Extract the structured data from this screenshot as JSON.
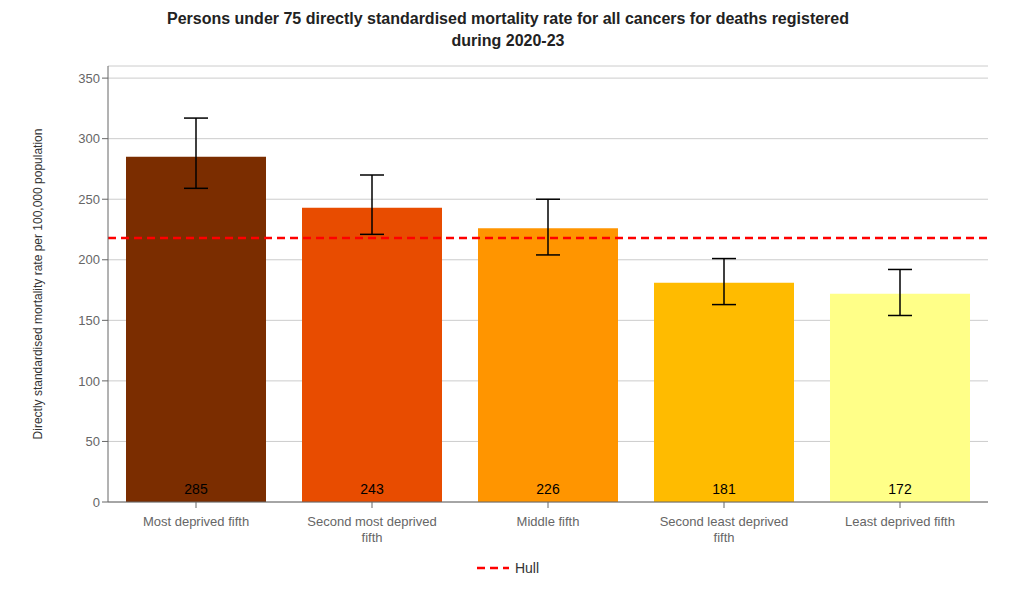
{
  "chart_data": {
    "type": "bar",
    "title": "Persons under 75 directly standardised mortality rate for all cancers for deaths registered\nduring 2020-23",
    "ylabel": "Directly standardised mortality rate per 100,000 population",
    "categories": [
      "Most deprived fifth",
      "Second most deprived\nfifth",
      "Middle fifth",
      "Second least deprived\nfifth",
      "Least deprived fifth"
    ],
    "values": [
      285,
      243,
      226,
      181,
      172
    ],
    "error_lower": [
      26,
      22,
      22,
      18,
      18
    ],
    "error_upper": [
      32,
      27,
      24,
      20,
      20
    ],
    "colors": [
      "#7B2D00",
      "#E84C00",
      "#FF9500",
      "#FFBB00",
      "#FFFF88"
    ],
    "ylim": [
      0,
      360
    ],
    "yticks": [
      0,
      50,
      100,
      150,
      200,
      250,
      300,
      350
    ],
    "grid": true,
    "data_labels": true,
    "legend": "bottom",
    "reference_lines": [
      {
        "name": "Hull",
        "value": 218,
        "color": "#FF0000",
        "line_style": "dashed"
      }
    ]
  }
}
